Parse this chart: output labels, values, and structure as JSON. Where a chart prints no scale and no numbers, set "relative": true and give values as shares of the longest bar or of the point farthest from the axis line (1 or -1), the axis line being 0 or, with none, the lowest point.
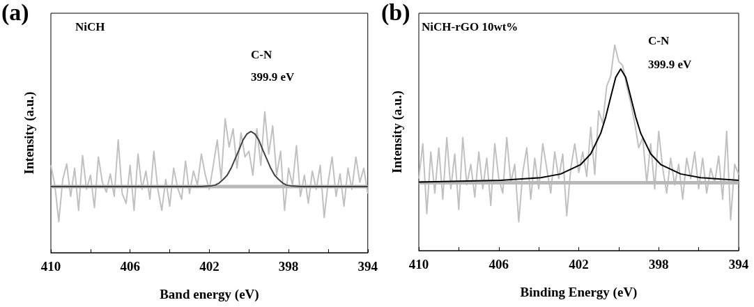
{
  "chart_data": [
    {
      "type": "line",
      "title": "(a)",
      "xlabel": "Band energy (eV)",
      "ylabel": "Intensity (a.u.)",
      "annotations": [
        "NiCH",
        "C-N",
        "399.9 eV"
      ],
      "relative": true,
      "tick_labels": "x",
      "marker": "none",
      "line_style": "solid",
      "grid": false,
      "xlim": [
        410,
        394
      ],
      "xticks": [
        410,
        {
          "value": 408,
          "label": null
        },
        406,
        {
          "value": 404,
          "label": null
        },
        402,
        {
          "value": 400,
          "label": null
        },
        398,
        {
          "value": 396,
          "label": null
        },
        394
      ],
      "series": [
        {
          "color": "#c0c0c0",
          "x": [
            410.0,
            409.8,
            409.6,
            409.4,
            409.2,
            409.0,
            408.8,
            408.6,
            408.4,
            408.2,
            408.0,
            407.8,
            407.6,
            407.4,
            407.2,
            407.0,
            406.8,
            406.6,
            406.4,
            406.2,
            406.0,
            405.8,
            405.6,
            405.4,
            405.2,
            405.0,
            404.8,
            404.6,
            404.4,
            404.2,
            404.0,
            403.8,
            403.6,
            403.4,
            403.2,
            403.0,
            402.8,
            402.6,
            402.4,
            402.2,
            402.0,
            401.8,
            401.6,
            401.4,
            401.2,
            401.0,
            400.8,
            400.6,
            400.4,
            400.2,
            400.0,
            399.8,
            399.6,
            399.4,
            399.2,
            399.0,
            398.8,
            398.6,
            398.4,
            398.2,
            398.0,
            397.8,
            397.6,
            397.4,
            397.2,
            397.0,
            396.8,
            396.6,
            396.4,
            396.2,
            396.0,
            395.8,
            395.6,
            395.4,
            395.2,
            395.0,
            394.8,
            394.6,
            394.4,
            394.2,
            394.0
          ],
          "values": [
            0.62,
            0.48,
            0.22,
            0.52,
            0.63,
            0.4,
            0.6,
            0.3,
            0.69,
            0.45,
            0.55,
            0.32,
            0.68,
            0.5,
            0.43,
            0.56,
            0.4,
            0.8,
            0.42,
            0.35,
            0.62,
            0.3,
            0.7,
            0.45,
            0.58,
            0.38,
            0.72,
            0.45,
            0.3,
            0.52,
            0.33,
            0.6,
            0.46,
            0.38,
            0.65,
            0.42,
            0.58,
            0.48,
            0.7,
            0.55,
            0.45,
            0.62,
            0.8,
            0.52,
            0.95,
            0.75,
            0.88,
            0.6,
            0.85,
            0.68,
            0.72,
            0.55,
            0.88,
            0.62,
            1.0,
            0.7,
            0.9,
            0.55,
            0.72,
            0.3,
            0.6,
            0.48,
            0.76,
            0.4,
            0.55,
            0.35,
            0.58,
            0.45,
            0.62,
            0.25,
            0.5,
            0.68,
            0.4,
            0.56,
            0.33,
            0.6,
            0.45,
            0.68,
            0.5,
            0.6,
            0.42
          ]
        },
        {
          "color": "#b8b8b8",
          "x": [
            410,
            394
          ],
          "values": [
            0.47,
            0.47
          ]
        },
        {
          "color": "#404040",
          "x": [
            410,
            402.4,
            401.9,
            401.7,
            401.5,
            401.3,
            401.1,
            400.9,
            400.7,
            400.5,
            400.3,
            400.1,
            399.9,
            399.7,
            399.5,
            399.3,
            399.1,
            398.9,
            398.7,
            398.5,
            398.3,
            398.1,
            397.9,
            397.4,
            394
          ],
          "values": [
            0.47,
            0.47,
            0.475,
            0.48,
            0.495,
            0.52,
            0.55,
            0.6,
            0.665,
            0.73,
            0.8,
            0.843,
            0.86,
            0.843,
            0.8,
            0.73,
            0.665,
            0.6,
            0.55,
            0.52,
            0.495,
            0.48,
            0.475,
            0.47,
            0.47
          ]
        }
      ]
    },
    {
      "type": "line",
      "title": "(b)",
      "xlabel": "Binding Energy (eV)",
      "ylabel": "Intensity (a.u.)",
      "annotations": [
        "NiCH-rGO 10wt%",
        "C-N",
        "399.9 eV"
      ],
      "relative": true,
      "tick_labels": "x",
      "marker": "none",
      "line_style": "solid",
      "grid": false,
      "xlim": [
        410,
        394
      ],
      "xticks": [
        410,
        {
          "value": 408,
          "label": null
        },
        406,
        {
          "value": 404,
          "label": null
        },
        402,
        {
          "value": 400,
          "label": null
        },
        398,
        {
          "value": 396,
          "label": null
        },
        394
      ],
      "series": [
        {
          "color": "#c0c0c0",
          "x": [
            410.0,
            409.8,
            409.6,
            409.4,
            409.2,
            409.0,
            408.8,
            408.6,
            408.4,
            408.2,
            408.0,
            407.8,
            407.6,
            407.4,
            407.2,
            407.0,
            406.8,
            406.6,
            406.4,
            406.2,
            406.0,
            405.8,
            405.6,
            405.4,
            405.2,
            405.0,
            404.8,
            404.6,
            404.4,
            404.2,
            404.0,
            403.8,
            403.6,
            403.4,
            403.2,
            403.0,
            402.8,
            402.6,
            402.4,
            402.2,
            402.0,
            401.8,
            401.6,
            401.4,
            401.2,
            401.0,
            400.8,
            400.6,
            400.4,
            400.2,
            400.0,
            399.8,
            399.6,
            399.4,
            399.2,
            399.0,
            398.8,
            398.6,
            398.4,
            398.2,
            398.0,
            397.8,
            397.6,
            397.4,
            397.2,
            397.0,
            396.8,
            396.6,
            396.4,
            396.2,
            396.0,
            395.8,
            395.6,
            395.4,
            395.2,
            395.0,
            394.8,
            394.6,
            394.4,
            394.2,
            394.0
          ],
          "values": [
            0.35,
            0.52,
            0.18,
            0.48,
            0.28,
            0.5,
            0.25,
            0.55,
            0.3,
            0.47,
            0.2,
            0.55,
            0.32,
            0.42,
            0.26,
            0.48,
            0.3,
            0.45,
            0.22,
            0.52,
            0.35,
            0.28,
            0.55,
            0.33,
            0.42,
            0.14,
            0.38,
            0.5,
            0.25,
            0.45,
            0.3,
            0.52,
            0.4,
            0.28,
            0.48,
            0.35,
            0.47,
            0.17,
            0.4,
            0.52,
            0.38,
            0.48,
            0.36,
            0.6,
            0.37,
            0.68,
            0.62,
            0.8,
            0.85,
            1.0,
            0.92,
            0.9,
            0.8,
            0.72,
            0.62,
            0.5,
            0.55,
            0.33,
            0.52,
            0.3,
            0.58,
            0.4,
            0.28,
            0.45,
            0.32,
            0.42,
            0.25,
            0.45,
            0.35,
            0.48,
            0.3,
            0.45,
            0.28,
            0.4,
            0.33,
            0.46,
            0.25,
            0.58,
            0.15,
            0.42,
            0.37
          ]
        },
        {
          "color": "#b8b8b8",
          "x": [
            410,
            394
          ],
          "values": [
            0.33,
            0.33
          ]
        },
        {
          "color": "#000000",
          "x": [
            410,
            405.9,
            403.9,
            402.9,
            401.9,
            401.4,
            400.9,
            400.65,
            400.4,
            400.15,
            399.9,
            399.65,
            399.4,
            399.15,
            398.9,
            398.4,
            397.9,
            396.9,
            395.9,
            394
          ],
          "values": [
            0.334,
            0.342,
            0.355,
            0.373,
            0.419,
            0.471,
            0.571,
            0.65,
            0.748,
            0.843,
            0.884,
            0.843,
            0.748,
            0.65,
            0.571,
            0.471,
            0.419,
            0.373,
            0.355,
            0.342
          ]
        }
      ]
    }
  ]
}
